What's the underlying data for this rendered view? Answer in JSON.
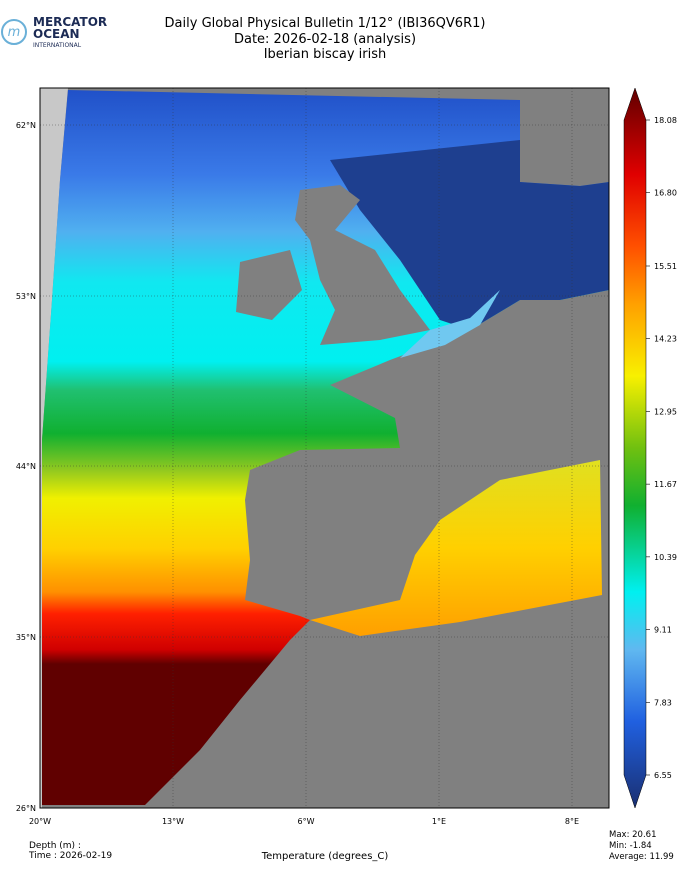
{
  "header": {
    "logo": {
      "line1": "MERCATOR",
      "line2": "OCEAN",
      "line3": "INTERNATIONAL"
    },
    "title": [
      "Daily Global Physical Bulletin 1/12° (IBI36QV6R1)",
      "Date: 2026-02-18 (analysis)",
      "Iberian biscay irish"
    ]
  },
  "map": {
    "lat_labels": [
      "62°N",
      "53°N",
      "44°N",
      "35°N",
      "26°N"
    ],
    "lon_labels": [
      "20°W",
      "13°W",
      "6°W",
      "1°E",
      "8°E"
    ]
  },
  "colorbar": {
    "range": [
      6.55,
      18.08
    ],
    "ticks": [
      18.08,
      {
        "value": 16.8,
        "label": "16.80"
      },
      15.51,
      14.23,
      12.95,
      11.67,
      10.39,
      9.11,
      7.83,
      6.55
    ]
  },
  "footer": {
    "depth": "Depth (m) :",
    "time": "Time : 2026-02-19",
    "variable": "Temperature (degrees_C)",
    "stats": [
      {
        "label": "Max:",
        "value": 20.61
      },
      {
        "label": "Min:",
        "value": -1.84
      },
      {
        "label": "Average:",
        "value": 11.99
      }
    ]
  }
}
